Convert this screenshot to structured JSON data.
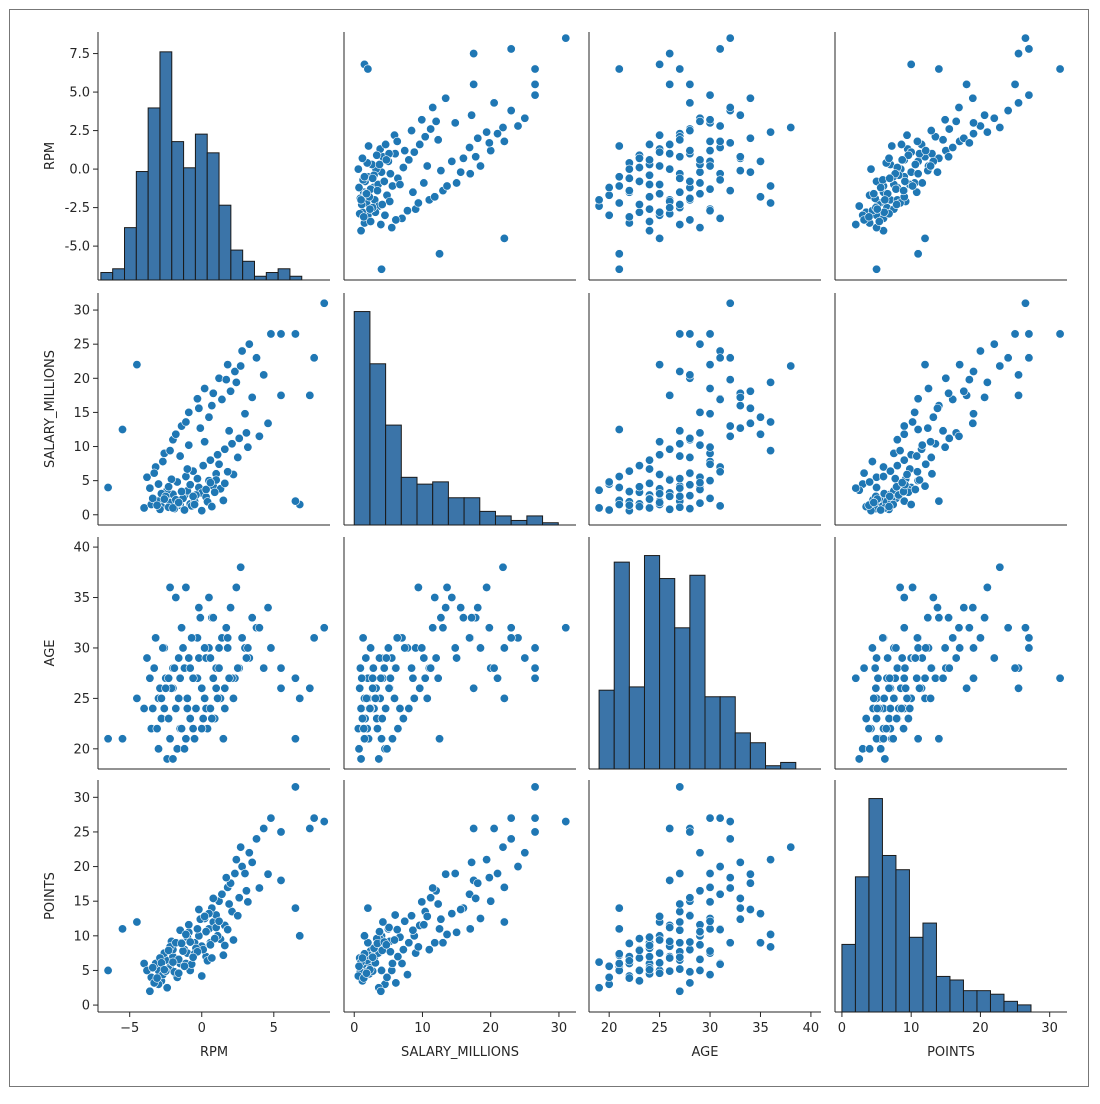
{
  "chart_data": {
    "type": "scatter",
    "variables": [
      "RPM",
      "SALARY_MILLIONS",
      "AGE",
      "POINTS"
    ],
    "axis_labels": {
      "RPM": "RPM",
      "SALARY_MILLIONS": "SALARY_MILLIONS",
      "AGE": "AGE",
      "POINTS": "POINTS"
    },
    "ranges": {
      "RPM": [
        -7.2,
        8.9
      ],
      "SALARY_MILLIONS": [
        -1.5,
        32.5
      ],
      "AGE": [
        18.0,
        41.0
      ],
      "POINTS": [
        -1.0,
        32.5
      ]
    },
    "ticks": {
      "RPM_y": [
        -5.0,
        -2.5,
        0.0,
        2.5,
        5.0,
        7.5
      ],
      "RPM_y_labels": [
        "-5.0",
        "-2.5",
        "0.0",
        "2.5",
        "5.0",
        "7.5"
      ],
      "RPM_x": [
        -5,
        0,
        5
      ],
      "RPM_x_labels": [
        "−5",
        "0",
        "5"
      ],
      "SALARY_MILLIONS": [
        0,
        5,
        10,
        15,
        20,
        25,
        30
      ],
      "SALARY_MILLIONS_x": [
        0,
        10,
        20,
        30
      ],
      "AGE": [
        20,
        25,
        30,
        35,
        40
      ],
      "POINTS": [
        0,
        5,
        10,
        15,
        20,
        25,
        30
      ],
      "POINTS_x": [
        0,
        10,
        20,
        30
      ]
    },
    "colors": {
      "points": "#1f77b4",
      "point_edge": "#ffffff",
      "bars": "#3b74a8",
      "bar_edge": "#1a1a1a",
      "axes": "#262626"
    },
    "histograms": {
      "RPM": {
        "edges": [
          -7.0,
          -6.18,
          -5.36,
          -4.54,
          -3.72,
          -2.9,
          -2.08,
          -1.26,
          -0.44,
          0.38,
          1.2,
          2.02,
          2.84,
          3.66,
          4.48,
          5.3,
          6.12,
          6.94,
          7.76,
          8.58
        ],
        "counts": [
          2,
          3,
          14,
          29,
          46,
          61,
          37,
          30,
          39,
          34,
          20,
          8,
          5,
          1,
          2,
          3,
          1,
          0,
          0
        ]
      },
      "SALARY_MILLIONS": {
        "edges": [
          0,
          2.3,
          4.6,
          6.9,
          9.2,
          11.5,
          13.8,
          16.1,
          18.4,
          20.7,
          23.0,
          25.3,
          27.6,
          29.9,
          32.2
        ],
        "counts": [
          94,
          71,
          44,
          21,
          18,
          19,
          12,
          12,
          6,
          4,
          2,
          4,
          1,
          0
        ]
      },
      "AGE": {
        "edges": [
          19,
          20.5,
          22,
          23.5,
          25,
          26.5,
          28,
          29.5,
          31,
          32.5,
          34,
          35.5,
          37,
          38.5,
          40
        ],
        "counts": [
          24,
          63,
          25,
          65,
          58,
          43,
          59,
          22,
          22,
          11,
          8,
          1,
          2,
          0
        ]
      },
      "POINTS": {
        "edges": [
          0,
          1.95,
          3.9,
          5.85,
          7.8,
          9.75,
          11.7,
          13.65,
          15.6,
          17.55,
          19.5,
          21.45,
          23.4,
          25.35,
          27.3,
          29.25,
          31.2
        ],
        "counts": [
          19,
          38,
          60,
          44,
          40,
          21,
          25,
          10,
          9,
          6,
          6,
          5,
          3,
          2,
          0,
          0
        ]
      }
    },
    "records": [
      [
        -4.0,
        1.0,
        24,
        6.0
      ],
      [
        -3.5,
        1.5,
        22,
        4.0
      ],
      [
        -3.0,
        2.0,
        25,
        5.0
      ],
      [
        -2.8,
        1.2,
        23,
        3.5
      ],
      [
        -2.5,
        2.5,
        27,
        6.5
      ],
      [
        -2.2,
        1.8,
        21,
        5.5
      ],
      [
        -2.0,
        3.0,
        26,
        7.0
      ],
      [
        -1.8,
        2.2,
        24,
        4.5
      ],
      [
        -1.5,
        1.4,
        22,
        6.0
      ],
      [
        -1.2,
        2.8,
        28,
        8.0
      ],
      [
        -1.0,
        3.5,
        25,
        7.5
      ],
      [
        -0.8,
        1.6,
        23,
        5.0
      ],
      [
        -0.5,
        2.0,
        27,
        9.0
      ],
      [
        -0.2,
        4.0,
        29,
        10.0
      ],
      [
        0.0,
        3.2,
        26,
        8.5
      ],
      [
        0.3,
        2.6,
        24,
        7.0
      ],
      [
        0.5,
        5.0,
        30,
        11.0
      ],
      [
        0.8,
        4.2,
        27,
        12.0
      ],
      [
        1.0,
        6.0,
        28,
        13.0
      ],
      [
        1.3,
        3.8,
        25,
        9.5
      ],
      [
        -3.8,
        5.5,
        29,
        5.0
      ],
      [
        -3.2,
        7.0,
        31,
        6.0
      ],
      [
        -2.6,
        9.0,
        30,
        7.5
      ],
      [
        -2.0,
        11.0,
        28,
        8.0
      ],
      [
        -1.4,
        13.0,
        32,
        9.0
      ],
      [
        -0.9,
        15.0,
        29,
        10.5
      ],
      [
        -0.3,
        17.0,
        31,
        11.0
      ],
      [
        0.2,
        18.5,
        30,
        12.5
      ],
      [
        0.7,
        16.0,
        33,
        14.0
      ],
      [
        1.2,
        20.0,
        28,
        15.0
      ],
      [
        1.8,
        22.0,
        30,
        17.0
      ],
      [
        2.3,
        21.0,
        27,
        19.0
      ],
      [
        2.8,
        24.0,
        31,
        20.0
      ],
      [
        3.3,
        25.0,
        29,
        22.0
      ],
      [
        3.8,
        23.0,
        32,
        24.0
      ],
      [
        4.3,
        20.5,
        28,
        25.5
      ],
      [
        4.8,
        26.5,
        30,
        27.0
      ],
      [
        5.5,
        26.5,
        28,
        25.0
      ],
      [
        6.5,
        26.5,
        27,
        31.5
      ],
      [
        7.5,
        17.5,
        26,
        25.5
      ],
      [
        8.5,
        31.0,
        32,
        26.5
      ],
      [
        7.8,
        23.0,
        31,
        27.0
      ],
      [
        6.8,
        1.5,
        25,
        10.0
      ],
      [
        6.5,
        2.0,
        21,
        14.0
      ],
      [
        5.5,
        17.5,
        26,
        18.0
      ],
      [
        -4.5,
        22.0,
        25,
        12.0
      ],
      [
        -5.5,
        12.5,
        21,
        11.0
      ],
      [
        -6.5,
        4.0,
        21,
        5.0
      ],
      [
        -3.0,
        4.5,
        20,
        3.0
      ],
      [
        -2.4,
        3.6,
        19,
        2.5
      ],
      [
        -1.7,
        4.8,
        20,
        4.0
      ],
      [
        -1.1,
        5.6,
        21,
        6.0
      ],
      [
        -0.6,
        6.4,
        22,
        7.0
      ],
      [
        0.1,
        7.2,
        23,
        8.0
      ],
      [
        0.6,
        8.0,
        24,
        9.0
      ],
      [
        1.1,
        8.8,
        25,
        10.0
      ],
      [
        1.6,
        9.6,
        26,
        11.5
      ],
      [
        2.1,
        10.4,
        27,
        13.5
      ],
      [
        2.6,
        11.2,
        28,
        15.5
      ],
      [
        3.1,
        12.0,
        29,
        16.5
      ],
      [
        -2.9,
        0.8,
        26,
        6.8
      ],
      [
        -2.3,
        1.1,
        27,
        5.2
      ],
      [
        -1.9,
        0.9,
        28,
        4.8
      ],
      [
        -1.6,
        1.7,
        29,
        6.6
      ],
      [
        -1.3,
        2.4,
        30,
        7.8
      ],
      [
        -0.7,
        1.3,
        31,
        5.9
      ],
      [
        -0.4,
        2.9,
        24,
        8.2
      ],
      [
        0.4,
        1.9,
        22,
        6.4
      ],
      [
        0.9,
        3.3,
        23,
        9.6
      ],
      [
        1.5,
        2.1,
        21,
        7.2
      ],
      [
        -3.6,
        3.9,
        27,
        2.0
      ],
      [
        -3.3,
        6.1,
        28,
        3.2
      ],
      [
        -2.7,
        7.8,
        30,
        4.4
      ],
      [
        -2.1,
        5.2,
        26,
        9.2
      ],
      [
        -1.5,
        8.6,
        27,
        10.8
      ],
      [
        -0.9,
        10.2,
        29,
        11.6
      ],
      [
        -0.1,
        12.7,
        33,
        12.4
      ],
      [
        0.5,
        14.3,
        35,
        13.2
      ],
      [
        1.4,
        16.9,
        31,
        16.0
      ],
      [
        2.0,
        18.1,
        34,
        17.6
      ],
      [
        2.4,
        19.4,
        36,
        21.0
      ],
      [
        3.0,
        14.8,
        30,
        19.0
      ],
      [
        1.9,
        12.3,
        27,
        14.6
      ],
      [
        0.2,
        10.7,
        25,
        12.8
      ],
      [
        -1.0,
        6.7,
        24,
        9.8
      ],
      [
        -2.0,
        1.0,
        19,
        6.2
      ],
      [
        -1.2,
        0.7,
        20,
        5.6
      ],
      [
        -0.5,
        1.5,
        21,
        7.4
      ],
      [
        0.0,
        0.6,
        22,
        4.2
      ],
      [
        0.7,
        1.2,
        23,
        6.8
      ],
      [
        1.6,
        4.6,
        24,
        8.6
      ],
      [
        2.2,
        5.9,
        25,
        9.4
      ],
      [
        -2.2,
        9.4,
        36,
        8.4
      ],
      [
        -1.8,
        11.8,
        35,
        9.0
      ],
      [
        -1.1,
        13.6,
        36,
        10.2
      ],
      [
        -0.2,
        15.6,
        34,
        13.8
      ],
      [
        0.8,
        17.8,
        33,
        15.4
      ],
      [
        1.7,
        19.8,
        32,
        18.4
      ],
      [
        2.7,
        21.8,
        38,
        22.8
      ],
      [
        3.5,
        17.2,
        33,
        20.6
      ],
      [
        -3.4,
        2.4,
        24,
        5.4
      ],
      [
        -2.8,
        3.1,
        25,
        6.1
      ],
      [
        -2.5,
        2.7,
        26,
        4.9
      ],
      [
        -2.3,
        4.1,
        23,
        7.9
      ],
      [
        -1.4,
        3.4,
        22,
        8.9
      ],
      [
        -0.8,
        4.4,
        28,
        9.1
      ],
      [
        -0.3,
        5.3,
        27,
        7.7
      ],
      [
        0.3,
        3.7,
        29,
        10.6
      ],
      [
        1.0,
        5.1,
        26,
        11.2
      ],
      [
        1.2,
        7.4,
        30,
        12.1
      ],
      [
        -3.1,
        1.4,
        22,
        3.9
      ],
      [
        -2.6,
        2.3,
        24,
        5.1
      ],
      [
        -1.6,
        1.8,
        25,
        4.6
      ],
      [
        -0.6,
        2.7,
        27,
        6.9
      ],
      [
        0.6,
        4.7,
        29,
        8.7
      ],
      [
        1.8,
        6.3,
        31,
        10.9
      ],
      [
        2.5,
        8.4,
        28,
        12.9
      ],
      [
        3.2,
        9.9,
        30,
        14.9
      ],
      [
        4.0,
        11.5,
        32,
        16.9
      ],
      [
        4.6,
        13.4,
        34,
        18.9
      ]
    ]
  }
}
